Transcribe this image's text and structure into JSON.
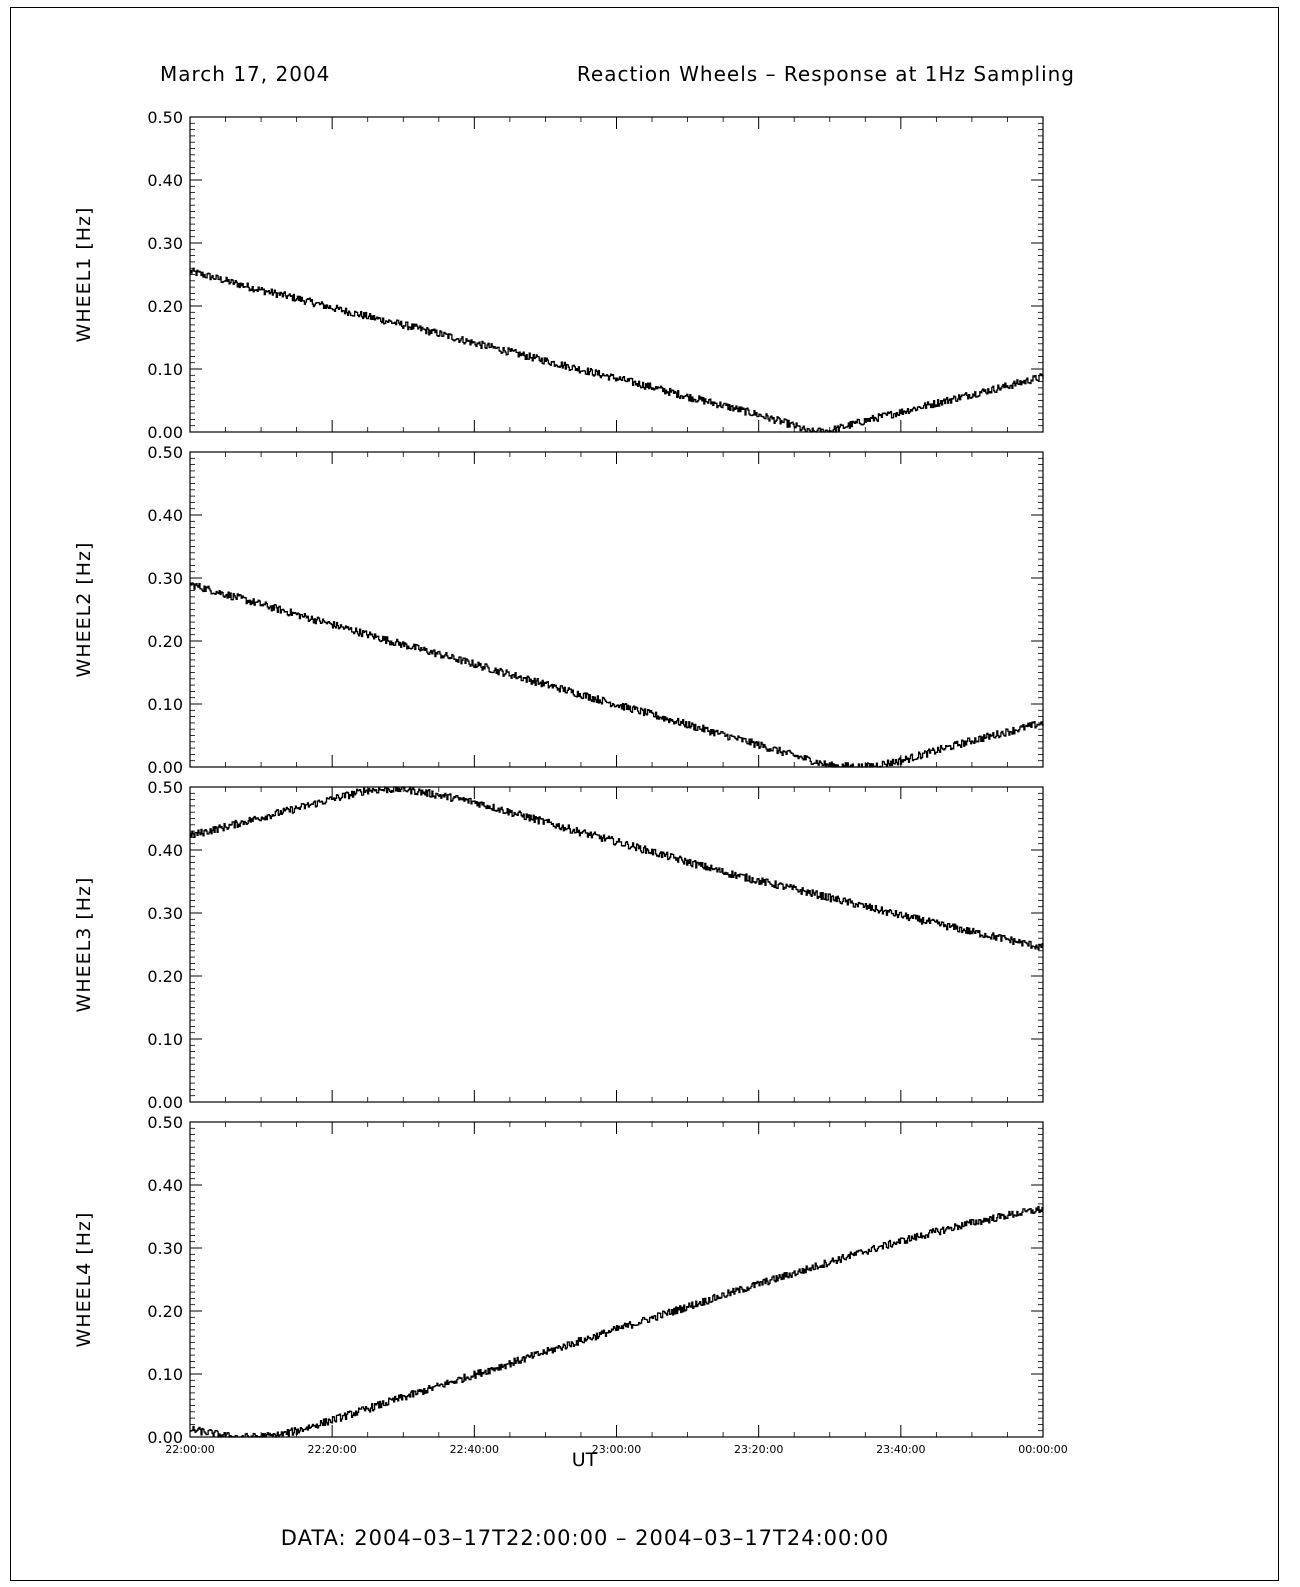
{
  "header": {
    "date": "March 17, 2004",
    "title": "Reaction Wheels – Response at 1Hz Sampling"
  },
  "footer": "DATA: 2004–03–17T22:00:00 – 2004–03–17T24:00:00",
  "chart_data": [
    {
      "type": "line",
      "ylabel": "WHEEL1 [Hz]",
      "ylim": [
        0,
        0.5
      ],
      "yticks": [
        "0.00",
        "0.10",
        "0.20",
        "0.30",
        "0.40",
        "0.50"
      ],
      "xlim_minutes": [
        0,
        120
      ],
      "series": [
        {
          "x": [
            0,
            5,
            10,
            15,
            20,
            25,
            30,
            35,
            40,
            45,
            50,
            55,
            60,
            65,
            70,
            75,
            80,
            85,
            87,
            90,
            95,
            100,
            105,
            110,
            115,
            120
          ],
          "values": [
            0.255,
            0.24,
            0.225,
            0.212,
            0.197,
            0.183,
            0.17,
            0.156,
            0.141,
            0.127,
            0.113,
            0.099,
            0.085,
            0.071,
            0.056,
            0.042,
            0.027,
            0.01,
            0.0,
            0.002,
            0.018,
            0.032,
            0.046,
            0.06,
            0.073,
            0.088
          ]
        }
      ]
    },
    {
      "type": "line",
      "ylabel": "WHEEL2 [Hz]",
      "ylim": [
        0,
        0.5
      ],
      "yticks": [
        "0.00",
        "0.10",
        "0.20",
        "0.30",
        "0.40",
        "0.50"
      ],
      "xlim_minutes": [
        0,
        120
      ],
      "series": [
        {
          "x": [
            0,
            5,
            10,
            15,
            20,
            25,
            30,
            35,
            40,
            45,
            50,
            55,
            60,
            65,
            70,
            75,
            80,
            85,
            90,
            95,
            100,
            105,
            110,
            115,
            120
          ],
          "values": [
            0.29,
            0.274,
            0.258,
            0.242,
            0.226,
            0.21,
            0.194,
            0.179,
            0.163,
            0.147,
            0.131,
            0.115,
            0.099,
            0.083,
            0.067,
            0.051,
            0.035,
            0.018,
            0.002,
            0.0,
            0.01,
            0.026,
            0.042,
            0.056,
            0.07
          ]
        }
      ]
    },
    {
      "type": "line",
      "ylabel": "WHEEL3 [Hz]",
      "ylim": [
        0,
        0.5
      ],
      "yticks": [
        "0.00",
        "0.10",
        "0.20",
        "0.30",
        "0.40",
        "0.50"
      ],
      "xlim_minutes": [
        0,
        120
      ],
      "series": [
        {
          "x": [
            0,
            5,
            10,
            15,
            20,
            25,
            30,
            35,
            40,
            45,
            50,
            55,
            60,
            65,
            70,
            75,
            80,
            85,
            90,
            95,
            100,
            105,
            110,
            115,
            120
          ],
          "values": [
            0.423,
            0.437,
            0.452,
            0.466,
            0.481,
            0.495,
            0.497,
            0.487,
            0.476,
            0.46,
            0.444,
            0.428,
            0.413,
            0.397,
            0.381,
            0.365,
            0.351,
            0.338,
            0.324,
            0.31,
            0.296,
            0.283,
            0.27,
            0.258,
            0.245
          ]
        }
      ]
    },
    {
      "type": "line",
      "ylabel": "WHEEL4 [Hz]",
      "xlabel": "UT",
      "ylim": [
        0,
        0.5
      ],
      "yticks": [
        "0.00",
        "0.10",
        "0.20",
        "0.30",
        "0.40",
        "0.50"
      ],
      "xlim_minutes": [
        0,
        120
      ],
      "xticks": [
        "22:00:00",
        "22:20:00",
        "22:40:00",
        "23:00:00",
        "23:20:00",
        "23:40:00",
        "00:00:00"
      ],
      "series": [
        {
          "x": [
            0,
            3,
            6,
            9,
            12,
            15,
            20,
            25,
            30,
            35,
            40,
            45,
            50,
            55,
            60,
            65,
            70,
            75,
            80,
            85,
            90,
            95,
            100,
            105,
            110,
            115,
            120
          ],
          "values": [
            0.012,
            0.006,
            0.0,
            0.0,
            0.002,
            0.01,
            0.027,
            0.045,
            0.063,
            0.081,
            0.099,
            0.117,
            0.135,
            0.153,
            0.171,
            0.189,
            0.207,
            0.225,
            0.243,
            0.26,
            0.278,
            0.295,
            0.311,
            0.326,
            0.34,
            0.352,
            0.362
          ]
        }
      ]
    }
  ]
}
